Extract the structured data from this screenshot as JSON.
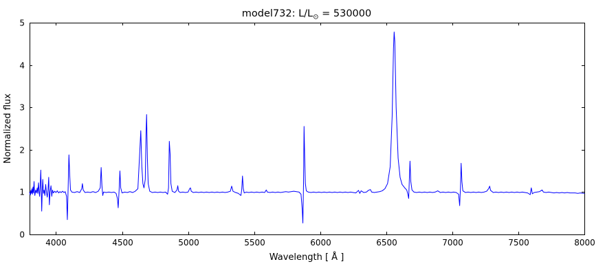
{
  "title": {
    "prefix": "model732: L/L",
    "sub": "⊙",
    "suffix": " = 530000"
  },
  "chart_data": {
    "type": "line",
    "title": "model732: L/L⊙ = 530000",
    "xlabel": "Wavelength [ Å ]",
    "ylabel": "Normalized flux",
    "xlim": [
      3800,
      8000
    ],
    "ylim": [
      0,
      5
    ],
    "xticks": [
      4000,
      4500,
      5000,
      5500,
      6000,
      6500,
      7000,
      7500,
      8000
    ],
    "yticks": [
      0,
      1,
      2,
      3,
      4,
      5
    ],
    "grid": false,
    "legend": null,
    "line_color": "#0000ff",
    "frame_color": "#000000",
    "background_color": "#ffffff",
    "notable_features": [
      {
        "wavelength": 3889,
        "peak": 1.52,
        "type": "emission with absorption dip"
      },
      {
        "wavelength": 4100,
        "peak": 1.88,
        "type": "emission with deep absorption dip 0.35"
      },
      {
        "wavelength": 4340,
        "peak": 1.58,
        "type": "emission"
      },
      {
        "wavelength": 4484,
        "peak": 1.5,
        "type": "emission with absorption dip 0.63"
      },
      {
        "wavelength": 4642,
        "peak": 2.45,
        "type": "emission"
      },
      {
        "wavelength": 4686,
        "peak": 2.83,
        "type": "emission"
      },
      {
        "wavelength": 4861,
        "peak": 2.2,
        "type": "emission"
      },
      {
        "wavelength": 5412,
        "peak": 1.38,
        "type": "emission"
      },
      {
        "wavelength": 5878,
        "peak": 2.55,
        "type": "emission with deep absorption dip 0.27"
      },
      {
        "wavelength": 6560,
        "peak": 4.78,
        "type": "strong emission"
      },
      {
        "wavelength": 6680,
        "peak": 1.73,
        "type": "emission"
      },
      {
        "wavelength": 7067,
        "peak": 1.68,
        "type": "emission with absorption dip 0.68"
      },
      {
        "wavelength": 7283,
        "peak": 1.14,
        "type": "weak emission"
      }
    ],
    "series": [
      {
        "name": "normalized flux",
        "points": [
          [
            3800,
            1.0
          ],
          [
            3806,
            0.93
          ],
          [
            3810,
            1.04
          ],
          [
            3814,
            0.97
          ],
          [
            3818,
            1.08
          ],
          [
            3822,
            0.95
          ],
          [
            3826,
            1.12
          ],
          [
            3830,
            0.98
          ],
          [
            3834,
            1.25
          ],
          [
            3837,
            1.02
          ],
          [
            3840,
            0.92
          ],
          [
            3846,
            1.05
          ],
          [
            3852,
            0.98
          ],
          [
            3858,
            1.1
          ],
          [
            3862,
            0.97
          ],
          [
            3868,
            1.22
          ],
          [
            3872,
            1.0
          ],
          [
            3876,
            0.9
          ],
          [
            3880,
            1.1
          ],
          [
            3885,
            1.52
          ],
          [
            3889,
            0.98
          ],
          [
            3892,
            0.55
          ],
          [
            3896,
            1.02
          ],
          [
            3900,
            1.3
          ],
          [
            3905,
            0.97
          ],
          [
            3910,
            1.05
          ],
          [
            3916,
            0.92
          ],
          [
            3922,
            1.18
          ],
          [
            3928,
            0.99
          ],
          [
            3934,
            0.88
          ],
          [
            3940,
            1.06
          ],
          [
            3945,
            1.35
          ],
          [
            3950,
            0.7
          ],
          [
            3955,
            1.0
          ],
          [
            3962,
            1.15
          ],
          [
            3968,
            0.9
          ],
          [
            3974,
            1.05
          ],
          [
            3980,
            0.98
          ],
          [
            3990,
            1.02
          ],
          [
            4000,
            0.99
          ],
          [
            4010,
            1.03
          ],
          [
            4020,
            0.98
          ],
          [
            4030,
            1.01
          ],
          [
            4040,
            0.99
          ],
          [
            4050,
            1.02
          ],
          [
            4060,
            0.99
          ],
          [
            4070,
            1.01
          ],
          [
            4080,
            0.9
          ],
          [
            4086,
            0.35
          ],
          [
            4092,
            1.1
          ],
          [
            4098,
            1.88
          ],
          [
            4104,
            1.4
          ],
          [
            4110,
            1.05
          ],
          [
            4120,
            1.0
          ],
          [
            4140,
            0.99
          ],
          [
            4160,
            1.01
          ],
          [
            4180,
            0.99
          ],
          [
            4195,
            1.08
          ],
          [
            4200,
            1.2
          ],
          [
            4206,
            1.05
          ],
          [
            4220,
            0.99
          ],
          [
            4240,
            1.0
          ],
          [
            4260,
            0.99
          ],
          [
            4280,
            1.01
          ],
          [
            4300,
            0.99
          ],
          [
            4320,
            1.02
          ],
          [
            4335,
            1.1
          ],
          [
            4342,
            1.58
          ],
          [
            4348,
            1.15
          ],
          [
            4354,
            0.92
          ],
          [
            4360,
            1.0
          ],
          [
            4380,
            0.99
          ],
          [
            4400,
            1.0
          ],
          [
            4420,
            0.99
          ],
          [
            4440,
            1.0
          ],
          [
            4455,
            0.97
          ],
          [
            4465,
            0.85
          ],
          [
            4471,
            0.63
          ],
          [
            4478,
            1.05
          ],
          [
            4484,
            1.5
          ],
          [
            4490,
            1.1
          ],
          [
            4500,
            0.98
          ],
          [
            4520,
            1.0
          ],
          [
            4540,
            0.99
          ],
          [
            4560,
            1.01
          ],
          [
            4580,
            0.99
          ],
          [
            4600,
            1.02
          ],
          [
            4620,
            1.08
          ],
          [
            4635,
            2.0
          ],
          [
            4642,
            2.45
          ],
          [
            4650,
            1.6
          ],
          [
            4658,
            1.2
          ],
          [
            4666,
            1.1
          ],
          [
            4676,
            1.3
          ],
          [
            4682,
            2.4
          ],
          [
            4686,
            2.83
          ],
          [
            4692,
            1.8
          ],
          [
            4698,
            1.2
          ],
          [
            4710,
            1.02
          ],
          [
            4730,
            0.99
          ],
          [
            4750,
            1.0
          ],
          [
            4770,
            0.99
          ],
          [
            4790,
            1.0
          ],
          [
            4810,
            0.99
          ],
          [
            4830,
            1.0
          ],
          [
            4845,
            0.95
          ],
          [
            4852,
            1.1
          ],
          [
            4858,
            2.2
          ],
          [
            4864,
            1.9
          ],
          [
            4870,
            1.2
          ],
          [
            4880,
            1.02
          ],
          [
            4900,
            0.99
          ],
          [
            4916,
            1.05
          ],
          [
            4922,
            1.15
          ],
          [
            4928,
            1.02
          ],
          [
            4940,
            0.99
          ],
          [
            4960,
            1.0
          ],
          [
            4980,
            0.99
          ],
          [
            5000,
            1.0
          ],
          [
            5012,
            1.08
          ],
          [
            5018,
            1.1
          ],
          [
            5024,
            1.02
          ],
          [
            5040,
            0.99
          ],
          [
            5060,
            1.0
          ],
          [
            5080,
            0.99
          ],
          [
            5100,
            1.0
          ],
          [
            5120,
            0.99
          ],
          [
            5140,
            1.0
          ],
          [
            5160,
            0.99
          ],
          [
            5180,
            1.0
          ],
          [
            5200,
            0.99
          ],
          [
            5220,
            1.0
          ],
          [
            5240,
            0.99
          ],
          [
            5260,
            1.0
          ],
          [
            5280,
            0.99
          ],
          [
            5300,
            1.0
          ],
          [
            5320,
            1.02
          ],
          [
            5330,
            1.14
          ],
          [
            5340,
            1.02
          ],
          [
            5360,
            0.99
          ],
          [
            5380,
            0.97
          ],
          [
            5400,
            0.92
          ],
          [
            5406,
            1.05
          ],
          [
            5412,
            1.38
          ],
          [
            5418,
            1.08
          ],
          [
            5425,
            0.98
          ],
          [
            5440,
            1.0
          ],
          [
            5460,
            0.99
          ],
          [
            5480,
            1.0
          ],
          [
            5500,
            0.99
          ],
          [
            5520,
            1.0
          ],
          [
            5540,
            0.99
          ],
          [
            5560,
            1.0
          ],
          [
            5580,
            0.99
          ],
          [
            5592,
            1.05
          ],
          [
            5600,
            1.0
          ],
          [
            5620,
            0.99
          ],
          [
            5640,
            1.0
          ],
          [
            5660,
            0.99
          ],
          [
            5680,
            1.0
          ],
          [
            5700,
            0.99
          ],
          [
            5720,
            1.0
          ],
          [
            5740,
            1.01
          ],
          [
            5760,
            1.0
          ],
          [
            5780,
            1.01
          ],
          [
            5800,
            1.02
          ],
          [
            5820,
            1.01
          ],
          [
            5840,
            1.0
          ],
          [
            5855,
            0.95
          ],
          [
            5864,
            0.6
          ],
          [
            5869,
            0.27
          ],
          [
            5874,
            1.2
          ],
          [
            5878,
            2.55
          ],
          [
            5883,
            1.8
          ],
          [
            5888,
            1.2
          ],
          [
            5895,
            1.03
          ],
          [
            5910,
            1.0
          ],
          [
            5930,
            0.99
          ],
          [
            5950,
            1.0
          ],
          [
            5970,
            0.99
          ],
          [
            5990,
            1.0
          ],
          [
            6010,
            0.99
          ],
          [
            6030,
            1.0
          ],
          [
            6050,
            0.99
          ],
          [
            6070,
            1.0
          ],
          [
            6090,
            0.99
          ],
          [
            6110,
            1.0
          ],
          [
            6130,
            0.99
          ],
          [
            6150,
            1.0
          ],
          [
            6170,
            0.99
          ],
          [
            6190,
            1.0
          ],
          [
            6210,
            0.99
          ],
          [
            6230,
            1.0
          ],
          [
            6250,
            0.99
          ],
          [
            6270,
            0.98
          ],
          [
            6290,
            1.04
          ],
          [
            6300,
            0.97
          ],
          [
            6310,
            1.03
          ],
          [
            6330,
            0.99
          ],
          [
            6350,
            1.0
          ],
          [
            6365,
            1.04
          ],
          [
            6380,
            1.06
          ],
          [
            6390,
            1.0
          ],
          [
            6410,
            0.99
          ],
          [
            6430,
            1.0
          ],
          [
            6450,
            1.01
          ],
          [
            6470,
            1.03
          ],
          [
            6490,
            1.08
          ],
          [
            6510,
            1.2
          ],
          [
            6530,
            1.6
          ],
          [
            6545,
            2.8
          ],
          [
            6555,
            4.4
          ],
          [
            6560,
            4.78
          ],
          [
            6565,
            4.55
          ],
          [
            6575,
            3.0
          ],
          [
            6590,
            1.8
          ],
          [
            6605,
            1.35
          ],
          [
            6620,
            1.18
          ],
          [
            6640,
            1.1
          ],
          [
            6655,
            1.05
          ],
          [
            6664,
            0.95
          ],
          [
            6670,
            0.85
          ],
          [
            6675,
            1.3
          ],
          [
            6680,
            1.73
          ],
          [
            6686,
            1.25
          ],
          [
            6695,
            1.05
          ],
          [
            6710,
            1.0
          ],
          [
            6730,
            0.99
          ],
          [
            6750,
            1.0
          ],
          [
            6770,
            0.99
          ],
          [
            6790,
            1.0
          ],
          [
            6810,
            0.99
          ],
          [
            6830,
            1.0
          ],
          [
            6850,
            0.99
          ],
          [
            6870,
            1.0
          ],
          [
            6890,
            1.03
          ],
          [
            6910,
            0.99
          ],
          [
            6930,
            1.0
          ],
          [
            6950,
            0.99
          ],
          [
            6970,
            1.0
          ],
          [
            6990,
            0.99
          ],
          [
            7010,
            1.0
          ],
          [
            7030,
            0.99
          ],
          [
            7048,
            0.95
          ],
          [
            7056,
            0.68
          ],
          [
            7062,
            1.1
          ],
          [
            7067,
            1.68
          ],
          [
            7073,
            1.25
          ],
          [
            7080,
            1.03
          ],
          [
            7100,
            0.99
          ],
          [
            7120,
            1.0
          ],
          [
            7140,
            0.99
          ],
          [
            7160,
            1.0
          ],
          [
            7180,
            0.99
          ],
          [
            7200,
            1.0
          ],
          [
            7220,
            0.99
          ],
          [
            7240,
            1.0
          ],
          [
            7260,
            1.02
          ],
          [
            7275,
            1.08
          ],
          [
            7283,
            1.14
          ],
          [
            7290,
            1.04
          ],
          [
            7310,
            0.99
          ],
          [
            7330,
            1.0
          ],
          [
            7350,
            0.99
          ],
          [
            7370,
            1.0
          ],
          [
            7390,
            0.99
          ],
          [
            7410,
            1.0
          ],
          [
            7430,
            0.99
          ],
          [
            7450,
            1.0
          ],
          [
            7470,
            0.99
          ],
          [
            7490,
            1.0
          ],
          [
            7510,
            0.99
          ],
          [
            7530,
            1.0
          ],
          [
            7550,
            0.99
          ],
          [
            7570,
            0.98
          ],
          [
            7590,
            0.94
          ],
          [
            7598,
            1.1
          ],
          [
            7606,
            0.96
          ],
          [
            7620,
            0.99
          ],
          [
            7640,
            1.0
          ],
          [
            7660,
            1.01
          ],
          [
            7680,
            1.05
          ],
          [
            7690,
            1.0
          ],
          [
            7710,
            0.99
          ],
          [
            7730,
            1.0
          ],
          [
            7750,
            0.99
          ],
          [
            7770,
            0.98
          ],
          [
            7790,
            0.99
          ],
          [
            7810,
            0.98
          ],
          [
            7830,
            0.99
          ],
          [
            7850,
            0.98
          ],
          [
            7870,
            0.99
          ],
          [
            7890,
            0.98
          ],
          [
            7910,
            0.98
          ],
          [
            7930,
            0.98
          ],
          [
            7950,
            0.97
          ],
          [
            7970,
            0.98
          ],
          [
            7990,
            0.97
          ],
          [
            8000,
            0.97
          ]
        ]
      }
    ]
  }
}
